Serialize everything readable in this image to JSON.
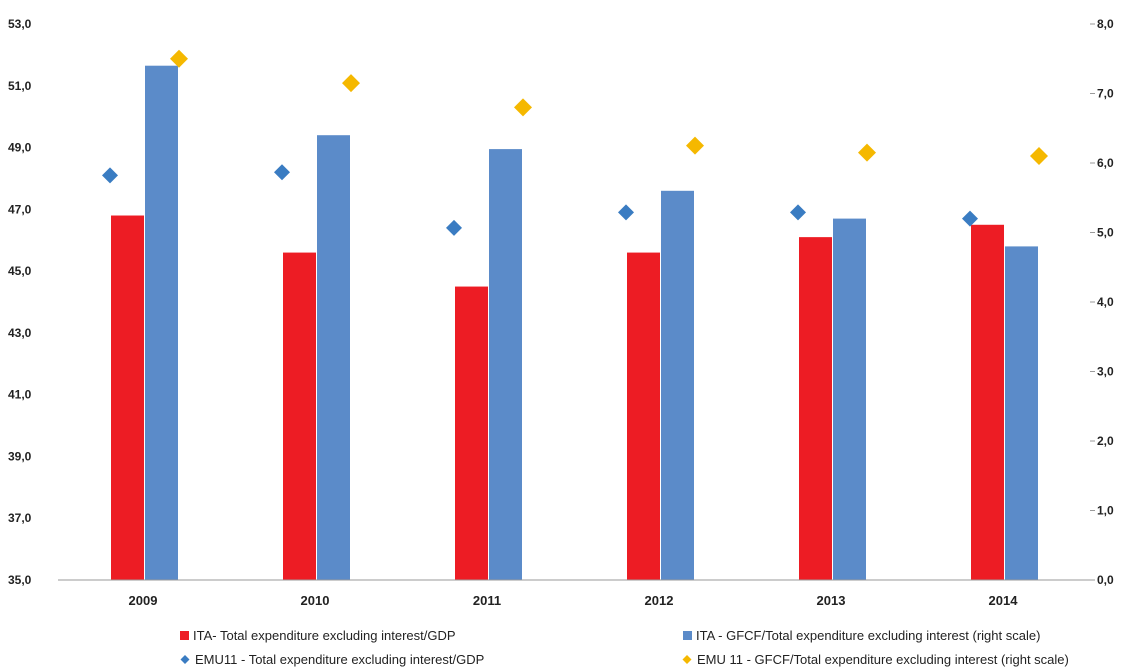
{
  "chart_data": {
    "type": "bar",
    "categories": [
      "2009",
      "2010",
      "2011",
      "2012",
      "2013",
      "2014"
    ],
    "left_axis": {
      "ylim": [
        35.0,
        53.0
      ],
      "ticks": [
        "35,0",
        "37,0",
        "39,0",
        "41,0",
        "43,0",
        "45,0",
        "47,0",
        "49,0",
        "51,0",
        "53,0"
      ]
    },
    "right_axis": {
      "ylim": [
        0.0,
        8.0
      ],
      "ticks": [
        "0,0",
        "1,0",
        "2,0",
        "3,0",
        "4,0",
        "5,0",
        "6,0",
        "7,0",
        "8,0"
      ]
    },
    "series": [
      {
        "name": "ITA- Total expenditure excluding interest/GDP",
        "kind": "bar",
        "axis": "left",
        "color": "#ed1c24",
        "values": [
          46.8,
          45.6,
          44.5,
          45.6,
          46.1,
          46.5
        ]
      },
      {
        "name": "ITA - GFCF/Total expenditure excluding interest (right scale)",
        "kind": "bar",
        "axis": "right",
        "color": "#5b8bc9",
        "values": [
          7.4,
          6.4,
          6.2,
          5.6,
          5.2,
          4.8
        ]
      },
      {
        "name": "EMU11 - Total expenditure excluding interest/GDP",
        "kind": "marker",
        "axis": "left",
        "color": "#3a7cc2",
        "values": [
          48.1,
          48.2,
          46.4,
          46.9,
          46.9,
          46.7
        ]
      },
      {
        "name": "EMU 11 - GFCF/Total expenditure excluding interest (right scale)",
        "kind": "marker",
        "axis": "right",
        "color": "#f5b800",
        "values": [
          7.5,
          7.15,
          6.8,
          6.25,
          6.15,
          6.1
        ]
      }
    ],
    "grid": false,
    "legend_position": "bottom"
  }
}
